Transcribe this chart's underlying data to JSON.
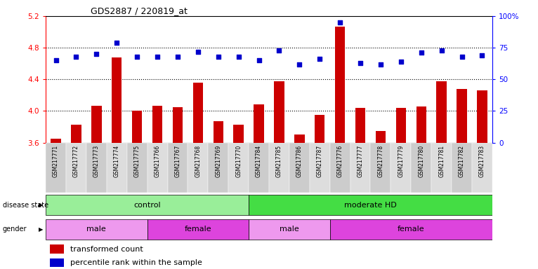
{
  "title": "GDS2887 / 220819_at",
  "samples": [
    "GSM217771",
    "GSM217772",
    "GSM217773",
    "GSM217774",
    "GSM217775",
    "GSM217766",
    "GSM217767",
    "GSM217768",
    "GSM217769",
    "GSM217770",
    "GSM217784",
    "GSM217785",
    "GSM217786",
    "GSM217787",
    "GSM217776",
    "GSM217777",
    "GSM217778",
    "GSM217779",
    "GSM217780",
    "GSM217781",
    "GSM217782",
    "GSM217783"
  ],
  "transformed_count": [
    3.65,
    3.83,
    4.07,
    4.68,
    4.0,
    4.07,
    4.05,
    4.36,
    3.87,
    3.83,
    4.08,
    4.38,
    3.7,
    3.95,
    5.07,
    4.04,
    3.75,
    4.04,
    4.06,
    4.38,
    4.28,
    4.26
  ],
  "percentile_rank": [
    65,
    68,
    70,
    79,
    68,
    68,
    68,
    72,
    68,
    68,
    65,
    73,
    62,
    66,
    95,
    63,
    62,
    64,
    71,
    73,
    68,
    69
  ],
  "ylim_left": [
    3.6,
    5.2
  ],
  "ylim_right": [
    0,
    100
  ],
  "yticks_left": [
    3.6,
    4.0,
    4.4,
    4.8,
    5.2
  ],
  "yticks_right": [
    0,
    25,
    50,
    75,
    100
  ],
  "bar_color": "#cc0000",
  "dot_color": "#0000cc",
  "disease_state_groups": [
    {
      "label": "control",
      "start": 0,
      "end": 10,
      "color": "#99ee99"
    },
    {
      "label": "moderate HD",
      "start": 10,
      "end": 22,
      "color": "#44dd44"
    }
  ],
  "gender_groups": [
    {
      "label": "male",
      "start": 0,
      "end": 5,
      "color": "#ee99ee"
    },
    {
      "label": "female",
      "start": 5,
      "end": 10,
      "color": "#dd44dd"
    },
    {
      "label": "male",
      "start": 10,
      "end": 14,
      "color": "#ee99ee"
    },
    {
      "label": "female",
      "start": 14,
      "end": 22,
      "color": "#dd44dd"
    }
  ],
  "legend_items": [
    {
      "label": "transformed count",
      "color": "#cc0000"
    },
    {
      "label": "percentile rank within the sample",
      "color": "#0000cc"
    }
  ],
  "grid_lines": [
    4.0,
    4.4,
    4.8
  ]
}
